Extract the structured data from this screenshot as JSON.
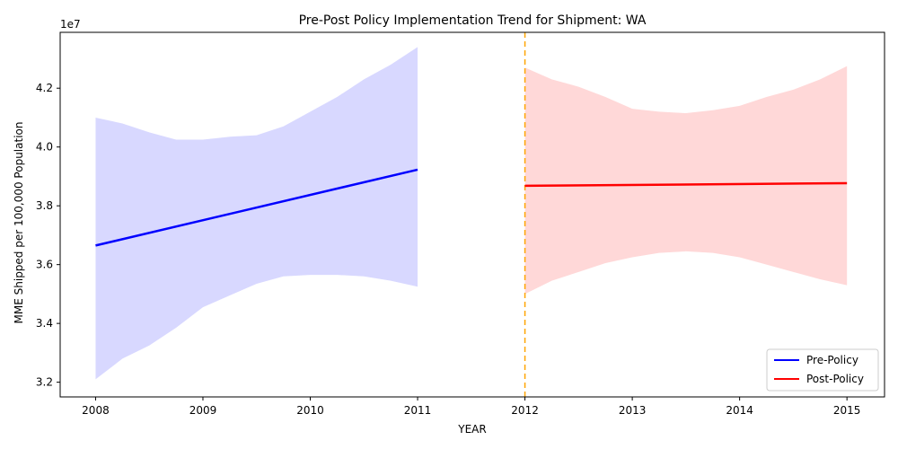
{
  "chart_data": {
    "type": "line",
    "title": "Pre-Post Policy Implementation Trend for Shipment: WA",
    "xlabel": "YEAR",
    "ylabel": "MME Shipped per 100,000 Population",
    "y_offset_label": "1e7",
    "xlim": [
      2007.67,
      2015.35
    ],
    "ylim": [
      31500000,
      43900000
    ],
    "x_ticks": [
      2008,
      2009,
      2010,
      2011,
      2012,
      2013,
      2014,
      2015
    ],
    "y_ticks": [
      32000000,
      34000000,
      36000000,
      38000000,
      40000000,
      42000000
    ],
    "y_tick_labels": [
      "3.2",
      "3.4",
      "3.6",
      "3.8",
      "4.0",
      "4.2"
    ],
    "policy_year": 2012,
    "series": [
      {
        "name": "Pre-Policy",
        "color": "#0000ff",
        "band_color": "#d8d8ff",
        "x": [
          2008,
          2011
        ],
        "y": [
          36650000,
          39230000
        ],
        "band_x": [
          2008,
          2008.25,
          2008.5,
          2008.75,
          2009,
          2009.25,
          2009.5,
          2009.75,
          2010,
          2010.25,
          2010.5,
          2010.75,
          2011
        ],
        "band_upper": [
          41000000,
          40800000,
          40500000,
          40250000,
          40250000,
          40350000,
          40400000,
          40700000,
          41200000,
          41700000,
          42300000,
          42800000,
          43400000
        ],
        "band_lower": [
          32100000,
          32800000,
          33250000,
          33850000,
          34550000,
          34950000,
          35350000,
          35600000,
          35650000,
          35650000,
          35600000,
          35450000,
          35250000
        ]
      },
      {
        "name": "Post-Policy",
        "color": "#ff0000",
        "band_color": "#ffd8d8",
        "x": [
          2012,
          2015
        ],
        "y": [
          38680000,
          38770000
        ],
        "band_x": [
          2012,
          2012.25,
          2012.5,
          2012.75,
          2013,
          2013.25,
          2013.5,
          2013.75,
          2014,
          2014.25,
          2014.5,
          2014.75,
          2015
        ],
        "band_upper": [
          42700000,
          42300000,
          42050000,
          41700000,
          41300000,
          41200000,
          41150000,
          41250000,
          41400000,
          41700000,
          41950000,
          42300000,
          42750000
        ],
        "band_lower": [
          35000000,
          35450000,
          35750000,
          36050000,
          36250000,
          36400000,
          36450000,
          36400000,
          36250000,
          36000000,
          35750000,
          35500000,
          35300000
        ]
      }
    ],
    "legend": {
      "location": "lower right",
      "entries": [
        "Pre-Policy",
        "Post-Policy"
      ]
    },
    "grid": false
  }
}
